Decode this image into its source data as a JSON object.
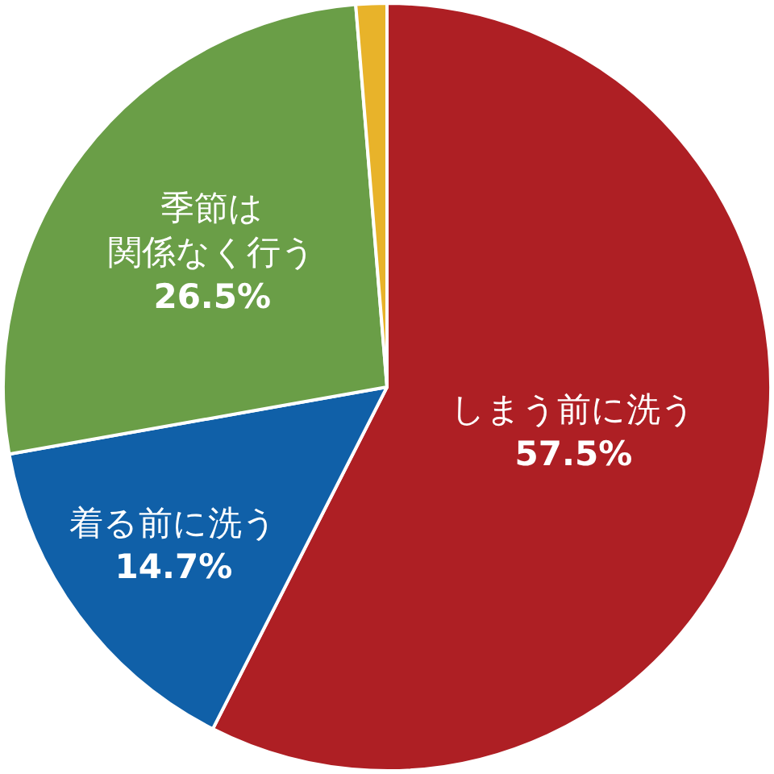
{
  "chart_data": {
    "type": "pie",
    "categories": [
      "しまう前に洗う",
      "着る前に洗う",
      "季節は関係なく行う",
      null
    ],
    "values": [
      57.5,
      14.7,
      26.5,
      1.3
    ],
    "colors": [
      "#ae1f24",
      "#1060a8",
      "#6a9e47",
      "#e8b32a"
    ],
    "value_labels": [
      "57.5%",
      "14.7%",
      "26.5%",
      null
    ]
  }
}
